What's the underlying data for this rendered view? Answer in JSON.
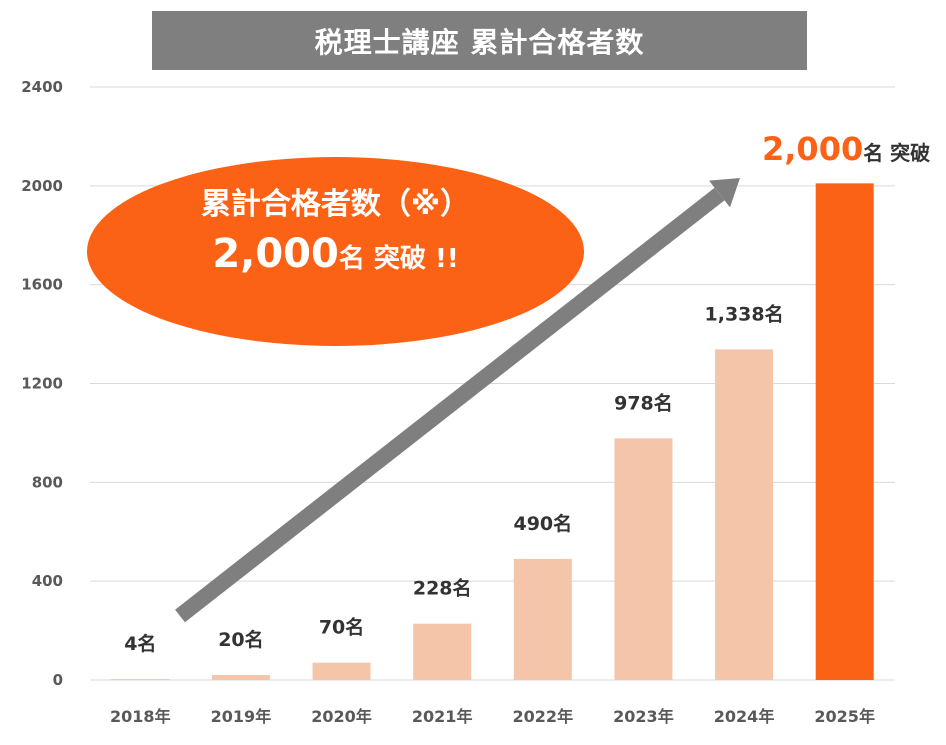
{
  "title": "税理士講座 累計合格者数",
  "callout": {
    "line1": "累計合格者数（※）",
    "big": "2,000",
    "unit": "名",
    "suffix": " 突破 !!"
  },
  "milestone": {
    "big": "2,000",
    "unit": "名",
    "suffix": " 突破"
  },
  "colors": {
    "bar_light": "#f5c5a9",
    "bar_highlight": "#fc6215",
    "arrow": "#7f7f7f",
    "gridline": "#d9d9d9"
  },
  "chart_data": {
    "type": "bar",
    "categories": [
      "2018年",
      "2019年",
      "2020年",
      "2021年",
      "2022年",
      "2023年",
      "2024年",
      "2025年"
    ],
    "values": [
      4,
      20,
      70,
      228,
      490,
      978,
      1338,
      2010
    ],
    "data_labels": [
      "4名",
      "20名",
      "70名",
      "228名",
      "490名",
      "978名",
      "1,338名",
      ""
    ],
    "highlight_index": 7,
    "ylim": [
      0,
      2400
    ],
    "yticks": [
      0,
      400,
      800,
      1200,
      1600,
      2000,
      2400
    ],
    "grid": true
  }
}
